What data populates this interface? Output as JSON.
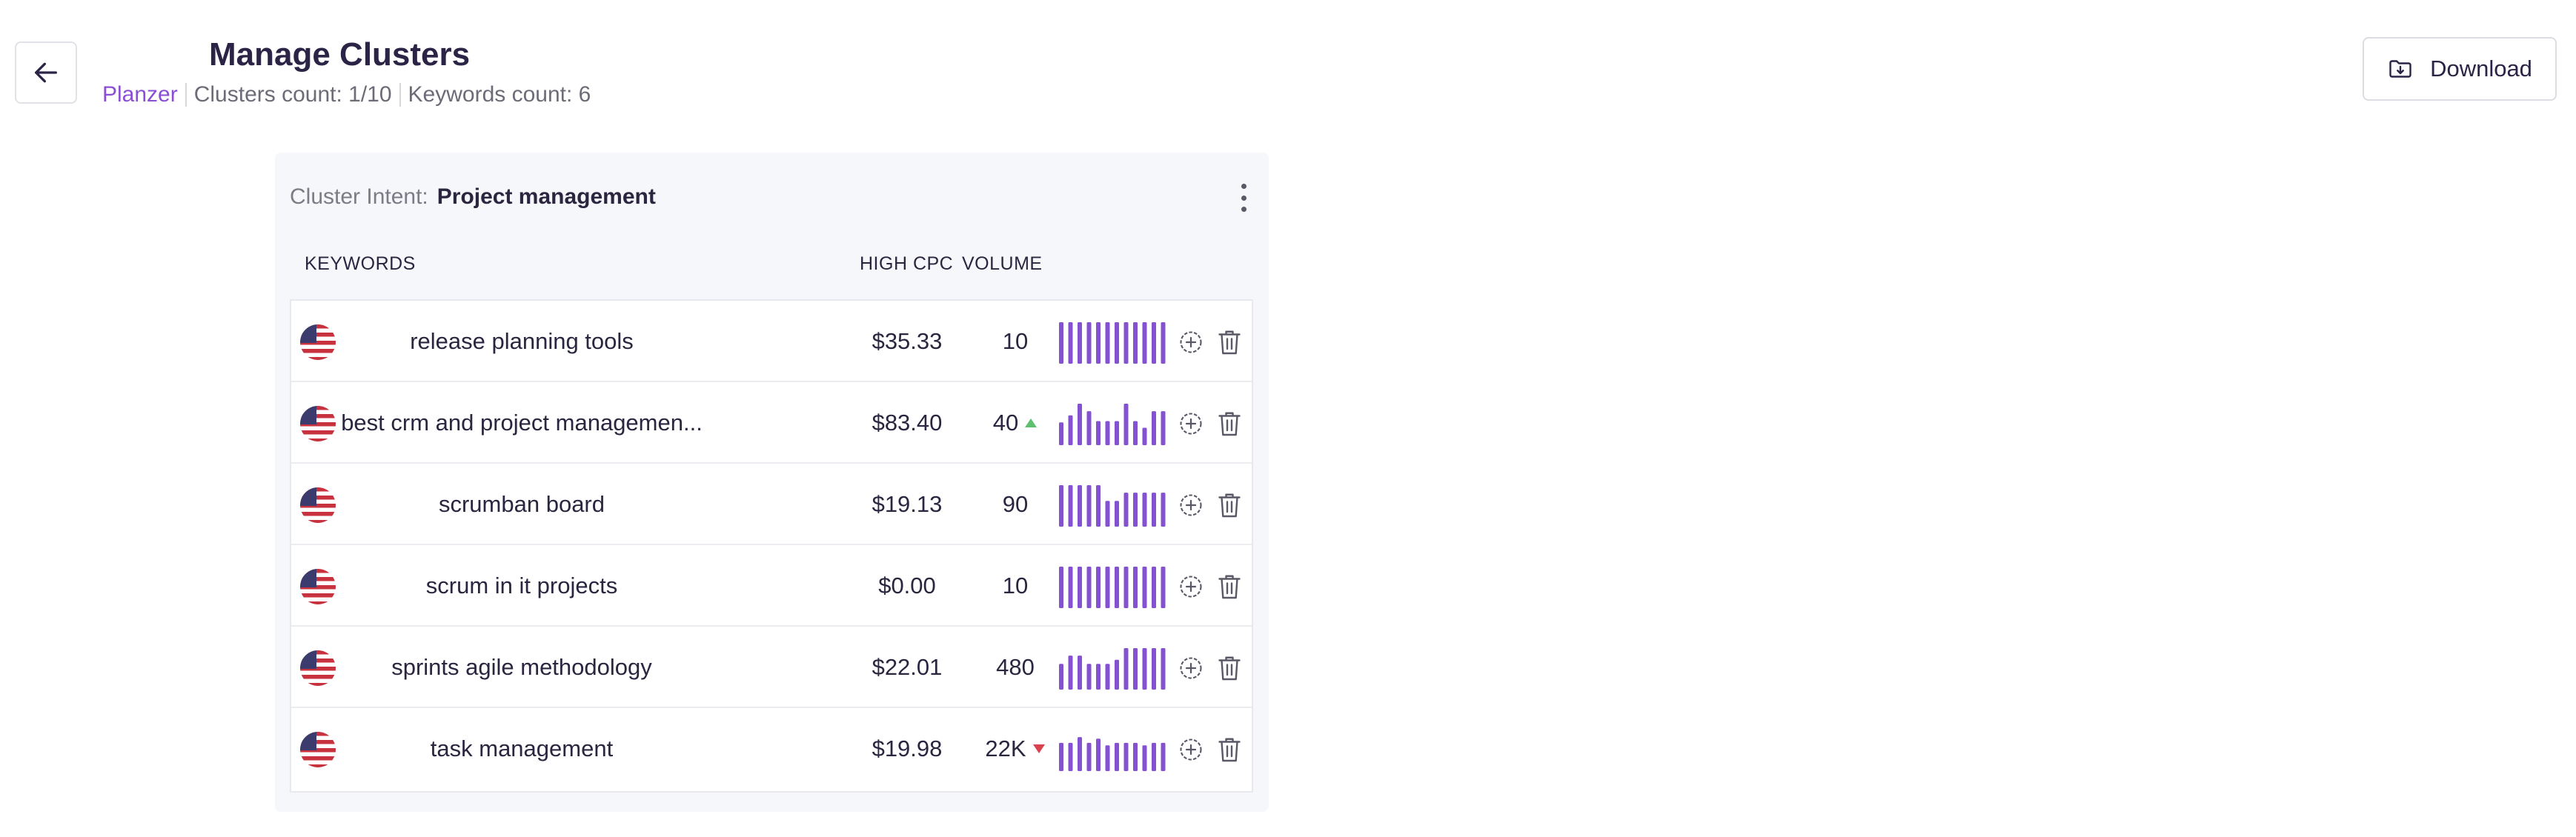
{
  "header": {
    "title": "Manage Clusters",
    "back_icon": "arrow-left-icon",
    "brand": "Planzer",
    "clusters_count": "Clusters count: 1/10",
    "keywords_count": "Keywords count: 6",
    "download_label": "Download",
    "download_icon": "folder-download-icon"
  },
  "cluster": {
    "intent_label": "Cluster Intent:",
    "intent_value": "Project management",
    "menu_icon": "more-vertical-icon",
    "columns": {
      "keywords": "KEYWORDS",
      "high_cpc": "HIGH CPC",
      "volume": "VOLUME"
    },
    "rows": [
      {
        "flag": "us-flag-icon",
        "keyword": "release planning tools",
        "high_cpc": "$35.33",
        "volume": "10",
        "volume_trend": "",
        "trend_values": [
          1,
          1,
          1,
          1,
          1,
          1,
          1,
          1,
          1,
          1,
          1,
          1
        ]
      },
      {
        "flag": "us-flag-icon",
        "keyword": "best crm and project managemen...",
        "high_cpc": "$83.40",
        "volume": "40",
        "volume_trend": "up",
        "trend_values": [
          0.55,
          0.72,
          1,
          0.82,
          0.58,
          0.58,
          0.58,
          1,
          0.58,
          0.42,
          0.82,
          0.82
        ]
      },
      {
        "flag": "us-flag-icon",
        "keyword": "scrumban board",
        "high_cpc": "$19.13",
        "volume": "90",
        "volume_trend": "",
        "trend_values": [
          1,
          1,
          1,
          1,
          1,
          0.62,
          0.62,
          0.82,
          0.82,
          0.82,
          0.82,
          0.82
        ]
      },
      {
        "flag": "us-flag-icon",
        "keyword": "scrum in it projects",
        "high_cpc": "$0.00",
        "volume": "10",
        "volume_trend": "",
        "trend_values": [
          1,
          1,
          1,
          1,
          1,
          1,
          1,
          1,
          1,
          1,
          1,
          1
        ]
      },
      {
        "flag": "us-flag-icon",
        "keyword": "sprints agile methodology",
        "high_cpc": "$22.01",
        "volume": "480",
        "volume_trend": "",
        "trend_values": [
          0.62,
          0.82,
          0.82,
          0.62,
          0.62,
          0.62,
          0.72,
          1,
          1,
          1,
          1,
          1
        ]
      },
      {
        "flag": "us-flag-icon",
        "keyword": "task management",
        "high_cpc": "$19.98",
        "volume": "22K",
        "volume_trend": "down",
        "trend_values": [
          0.68,
          0.68,
          0.82,
          0.68,
          0.78,
          0.62,
          0.68,
          0.68,
          0.68,
          0.62,
          0.68,
          0.68
        ]
      }
    ],
    "add_icon": "plus-circle-icon",
    "delete_icon": "trash-icon"
  },
  "colors": {
    "accent": "#8a4fd3",
    "bar": "#8451d0",
    "trend_up": "#5cc06c",
    "trend_down": "#d9414f"
  }
}
